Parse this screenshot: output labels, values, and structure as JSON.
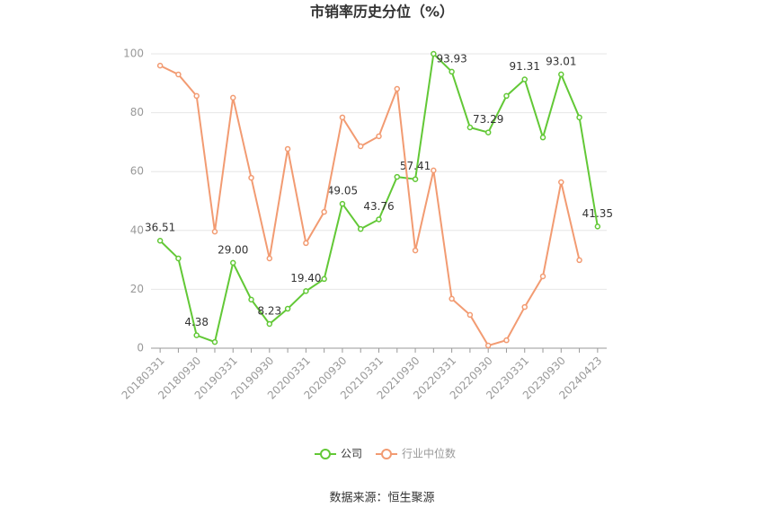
{
  "chart_data": {
    "type": "line",
    "title": "市销率历史分位（%）",
    "categories": [
      "20180331",
      null,
      "20180930",
      null,
      "20190331",
      null,
      "20190930",
      null,
      "20200331",
      null,
      "20200930",
      null,
      "20210331",
      null,
      "20210930",
      null,
      "20220331",
      null,
      "20220930",
      null,
      "20230331",
      null,
      "20230930",
      null,
      "20240423"
    ],
    "series": [
      {
        "name": "公司",
        "color": "#62c836",
        "values": [
          36.51,
          30.5,
          4.38,
          2.1,
          29.0,
          16.5,
          8.23,
          13.4,
          19.4,
          23.5,
          49.05,
          40.5,
          43.76,
          58.2,
          57.41,
          100,
          93.93,
          75.0,
          73.29,
          85.7,
          91.31,
          71.6,
          93.01,
          78.4,
          41.35
        ],
        "value_labels": [
          "36.51",
          null,
          "4.38",
          null,
          "29.00",
          null,
          "8.23",
          null,
          "19.40",
          null,
          "49.05",
          null,
          "43.76",
          null,
          "57.41",
          null,
          "93.93",
          null,
          "73.29",
          null,
          "91.31",
          null,
          "93.01",
          null,
          "41.35"
        ]
      },
      {
        "name": "行业中位数",
        "color": "#f29b72",
        "values": [
          96.0,
          93.0,
          85.7,
          39.6,
          85.1,
          57.9,
          30.5,
          67.7,
          35.7,
          46.3,
          78.4,
          68.6,
          72.0,
          88.1,
          33.2,
          60.4,
          16.8,
          11.3,
          0.9,
          2.7,
          14.0,
          24.4,
          56.4,
          29.9,
          null
        ]
      }
    ],
    "ylim": [
      0,
      100
    ],
    "yticks": [
      0,
      20,
      40,
      60,
      80,
      100
    ],
    "grid": true,
    "legend": "bottom",
    "source": "数据来源：恒生聚源"
  }
}
